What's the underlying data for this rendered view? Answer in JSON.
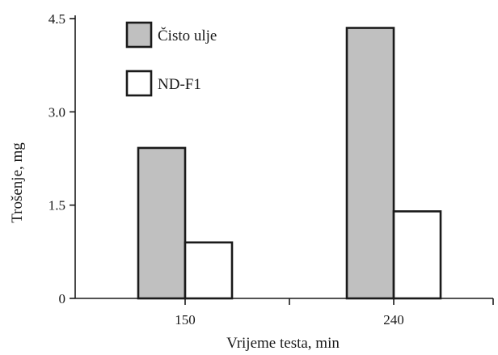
{
  "chart_data": {
    "type": "bar",
    "categories": [
      "150",
      "240"
    ],
    "series": [
      {
        "name": "Čisto ulje",
        "values": [
          2.42,
          4.35
        ],
        "color": "#c0c0c0"
      },
      {
        "name": "ND-F1",
        "values": [
          0.9,
          1.4
        ],
        "color": "#ffffff"
      }
    ],
    "xlabel": "Vrijeme testa, min",
    "ylabel": "Trošenje, mg",
    "ylim": [
      0,
      4.5
    ],
    "yticks": [
      0,
      1.5,
      3.0,
      4.5
    ],
    "ytick_labels": [
      "0",
      "1.5",
      "3.0",
      "4.5"
    ],
    "legend_position": "top-left",
    "grid": false
  }
}
